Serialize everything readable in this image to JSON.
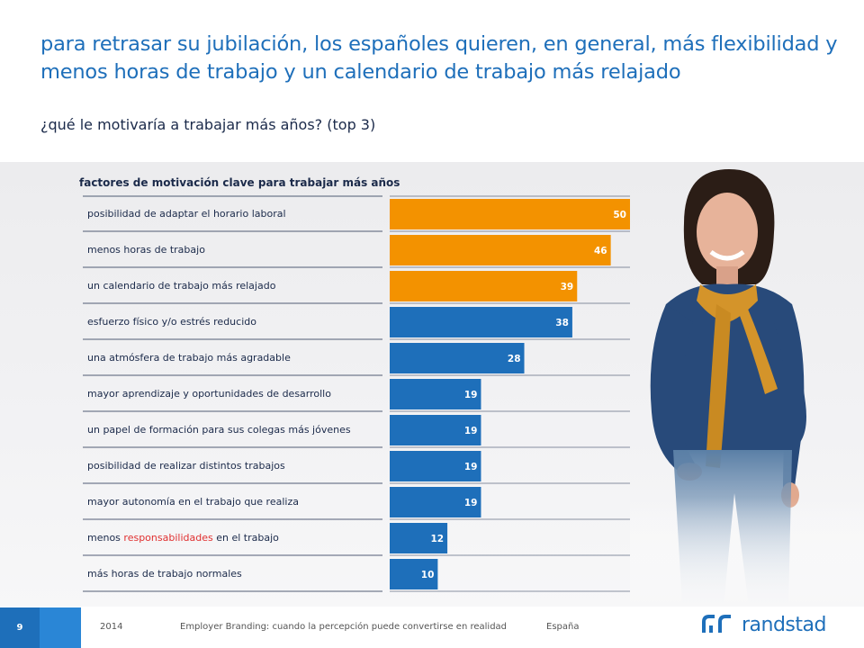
{
  "title": "para retrasar su jubilación, los españoles quieren, en general, más flexibilidad y menos horas de trabajo y un calendario de trabajo más relajado",
  "subtitle": "¿qué le motivaría a trabajar más años? (top 3)",
  "colors": {
    "highlight": "#f39200",
    "base": "#1e6fba",
    "accent_text": "#e03030"
  },
  "chart_data": {
    "type": "bar",
    "orientation": "horizontal",
    "title": "factores de motivación clave para trabajar más años",
    "categories": [
      "posibilidad de adaptar el horario laboral",
      "menos horas de trabajo",
      "un calendario de trabajo más relajado",
      "esfuerzo físico y/o estrés reducido",
      "una atmósfera de trabajo más agradable",
      "mayor aprendizaje y oportunidades de desarrollo",
      "un papel de formación para sus colegas más jóvenes",
      "posibilidad de realizar distintos trabajos",
      "mayor autonomía en el trabajo que realiza",
      "menos responsabilidades en el trabajo",
      "más horas de trabajo normales"
    ],
    "values": [
      50,
      46,
      39,
      38,
      28,
      19,
      19,
      19,
      19,
      12,
      10
    ],
    "highlighted_top": 3,
    "highlighted_word": {
      "index": 9,
      "word": "responsabilidades"
    },
    "xlim": [
      0,
      50
    ],
    "grid": false,
    "data_labels": true
  },
  "footer": {
    "page_number": "9",
    "year": "2014",
    "report": "Employer Branding: cuando la percepción puede convertirse en realidad",
    "country": "España",
    "brand": "randstad"
  }
}
